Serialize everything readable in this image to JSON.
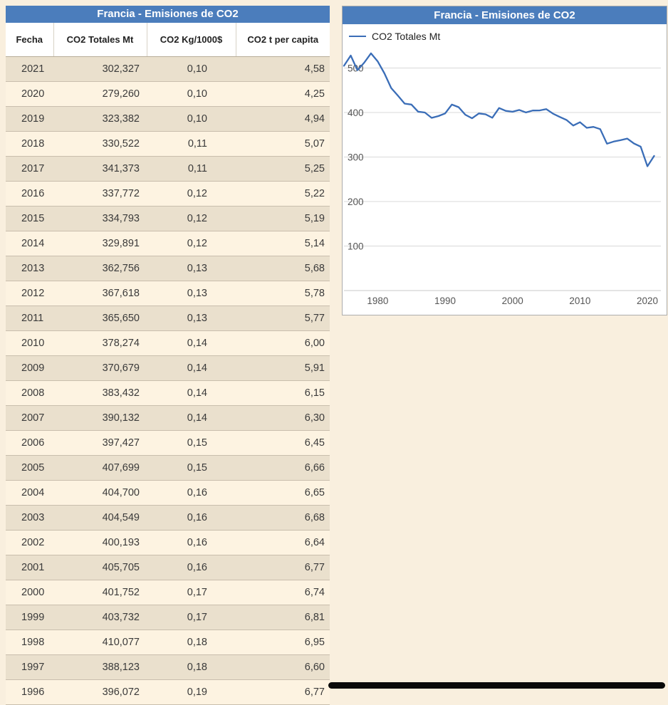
{
  "left_table": {
    "title": "Francia - Emisiones de CO2",
    "columns": [
      "Fecha",
      "CO2 Totales Mt",
      "CO2 Kg/1000$",
      "CO2 t per capita"
    ],
    "rows": [
      [
        "2021",
        "302,327",
        "0,10",
        "4,58"
      ],
      [
        "2020",
        "279,260",
        "0,10",
        "4,25"
      ],
      [
        "2019",
        "323,382",
        "0,10",
        "4,94"
      ],
      [
        "2018",
        "330,522",
        "0,11",
        "5,07"
      ],
      [
        "2017",
        "341,373",
        "0,11",
        "5,25"
      ],
      [
        "2016",
        "337,772",
        "0,12",
        "5,22"
      ],
      [
        "2015",
        "334,793",
        "0,12",
        "5,19"
      ],
      [
        "2014",
        "329,891",
        "0,12",
        "5,14"
      ],
      [
        "2013",
        "362,756",
        "0,13",
        "5,68"
      ],
      [
        "2012",
        "367,618",
        "0,13",
        "5,78"
      ],
      [
        "2011",
        "365,650",
        "0,13",
        "5,77"
      ],
      [
        "2010",
        "378,274",
        "0,14",
        "6,00"
      ],
      [
        "2009",
        "370,679",
        "0,14",
        "5,91"
      ],
      [
        "2008",
        "383,432",
        "0,14",
        "6,15"
      ],
      [
        "2007",
        "390,132",
        "0,14",
        "6,30"
      ],
      [
        "2006",
        "397,427",
        "0,15",
        "6,45"
      ],
      [
        "2005",
        "407,699",
        "0,15",
        "6,66"
      ],
      [
        "2004",
        "404,700",
        "0,16",
        "6,65"
      ],
      [
        "2003",
        "404,549",
        "0,16",
        "6,68"
      ],
      [
        "2002",
        "400,193",
        "0,16",
        "6,64"
      ],
      [
        "2001",
        "405,705",
        "0,16",
        "6,77"
      ],
      [
        "2000",
        "401,752",
        "0,17",
        "6,74"
      ],
      [
        "1999",
        "403,732",
        "0,17",
        "6,81"
      ],
      [
        "1998",
        "410,077",
        "0,18",
        "6,95"
      ],
      [
        "1997",
        "388,123",
        "0,18",
        "6,60"
      ],
      [
        "1996",
        "396,072",
        "0,19",
        "6,77"
      ]
    ]
  },
  "chart_panel": {
    "title": "Francia - Emisiones de CO2",
    "legend_label": "CO2 Totales Mt"
  },
  "chart_data": {
    "type": "line",
    "title": "Francia - Emisiones de CO2",
    "xlabel": "",
    "ylabel": "",
    "grid": true,
    "legend_position": "top-left",
    "line_color": "#3a6db7",
    "xlim": [
      1975,
      2022
    ],
    "ylim": [
      0,
      560
    ],
    "x_ticks": [
      1980,
      1990,
      2000,
      2010,
      2020
    ],
    "y_ticks": [
      100,
      200,
      300,
      400,
      500
    ],
    "series": [
      {
        "name": "CO2 Totales Mt",
        "x": [
          1975,
          1976,
          1977,
          1978,
          1979,
          1980,
          1981,
          1982,
          1983,
          1984,
          1985,
          1986,
          1987,
          1988,
          1989,
          1990,
          1991,
          1992,
          1993,
          1994,
          1995,
          1996,
          1997,
          1998,
          1999,
          2000,
          2001,
          2002,
          2003,
          2004,
          2005,
          2006,
          2007,
          2008,
          2009,
          2010,
          2011,
          2012,
          2013,
          2014,
          2015,
          2016,
          2017,
          2018,
          2019,
          2020,
          2021
        ],
        "values": [
          505,
          528,
          495,
          512,
          533,
          515,
          488,
          455,
          438,
          420,
          418,
          402,
          400,
          388,
          392,
          398,
          418,
          412,
          395,
          387,
          398,
          396.072,
          388.123,
          410.077,
          403.732,
          401.752,
          405.705,
          400.193,
          404.549,
          404.7,
          407.699,
          397.427,
          390.132,
          383.432,
          370.679,
          378.274,
          365.65,
          367.618,
          362.756,
          329.891,
          334.793,
          337.772,
          341.373,
          330.522,
          323.382,
          279.26,
          302.327
        ]
      }
    ]
  }
}
